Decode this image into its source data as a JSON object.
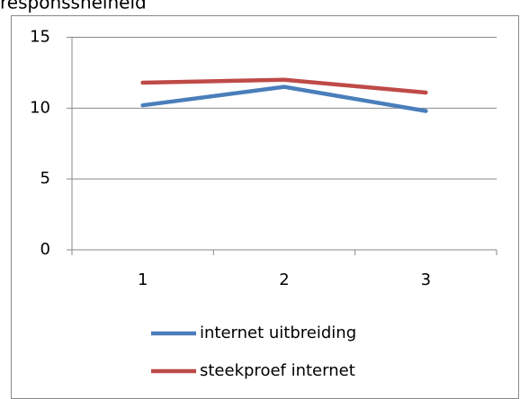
{
  "chart_data": {
    "type": "line",
    "title": "responssnelheid",
    "categories": [
      "1",
      "2",
      "3"
    ],
    "series": [
      {
        "name": "internet uitbreiding",
        "color": "#4a7ebb",
        "values": [
          10.2,
          11.5,
          9.8
        ]
      },
      {
        "name": "steekproef internet",
        "color": "#be4b48",
        "values": [
          11.8,
          12.0,
          11.1
        ]
      }
    ],
    "ylim": [
      0,
      15
    ],
    "yticks": [
      0,
      5,
      10,
      15
    ],
    "grid": true,
    "legend": "bottom"
  }
}
